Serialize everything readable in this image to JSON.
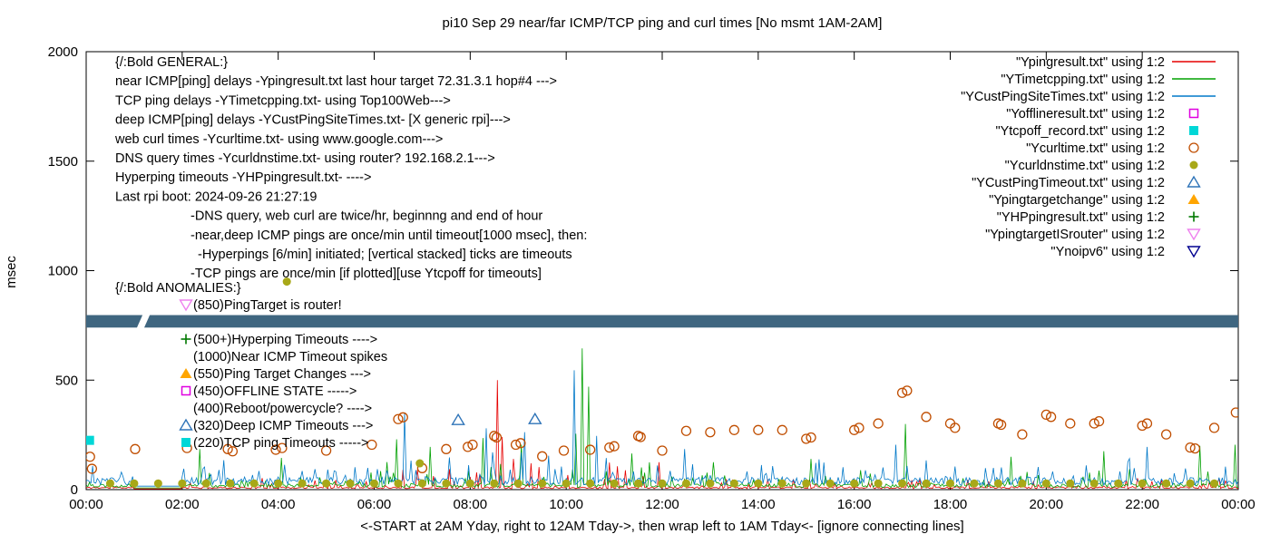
{
  "chart_data": {
    "type": "line+scatter",
    "title": "pi10 Sep 29  near/far ICMP/TCP ping and curl times [No msmt 1AM-2AM]",
    "ylabel": "msec",
    "xlabel": "<-START at 2AM Yday, right to 12AM Tday->, then wrap left to 1AM Tday<- [ignore connecting lines]",
    "ylim": [
      0,
      2000
    ],
    "y_ticks": [
      0,
      500,
      1000,
      1500,
      2000
    ],
    "x_ticks": [
      "00:00",
      "02:00",
      "04:00",
      "06:00",
      "08:00",
      "10:00",
      "12:00",
      "14:00",
      "16:00",
      "18:00",
      "20:00",
      "22:00",
      "00:00"
    ],
    "x_hours_range": [
      0,
      24
    ],
    "grid": false,
    "legend_position": "top-right-outside-plot",
    "legend": [
      {
        "label": "\"Ypingresult.txt\" using 1:2",
        "type": "line",
        "color": "#e60000"
      },
      {
        "label": "\"YTimetcpping.txt\" using 1:2",
        "type": "line",
        "color": "#00a000"
      },
      {
        "label": "\"YCustPingSiteTimes.txt\" using 1:2",
        "type": "line",
        "color": "#0078c8"
      },
      {
        "label": "\"Yofflineresult.txt\" using 1:2",
        "type": "square-open",
        "color": "#e000e0"
      },
      {
        "label": "\"Ytcpoff_record.txt\" using 1:2",
        "type": "square-filled",
        "color": "#00d7d7"
      },
      {
        "label": "\"Ycurltime.txt\" using 1:2",
        "type": "circle-open",
        "color": "#c04e01"
      },
      {
        "label": "\"Ycurldnstime.txt\" using 1:2",
        "type": "circle-filled",
        "color": "#a8a818"
      },
      {
        "label": "\"YCustPingTimeout.txt\" using 1:2",
        "type": "triangle-up-open",
        "color": "#2f74b8"
      },
      {
        "label": "\"Ypingtargetchange\" using 1:2",
        "type": "triangle-up-filled",
        "color": "#ffa500"
      },
      {
        "label": "\"YHPpingresult.txt\" using 1:2",
        "type": "plus",
        "color": "#007800"
      },
      {
        "label": "\"YpingtargetISrouter\" using 1:2",
        "type": "triangle-down-open",
        "color": "#ee82ee"
      },
      {
        "label": "\"Ynoipv6\" using 1:2",
        "type": "triangle-down-open",
        "color": "#000090"
      }
    ],
    "annotations": {
      "general": [
        {
          "indent": 0,
          "text": "{/:Bold GENERAL:}"
        },
        {
          "indent": 0,
          "text": "near ICMP[ping] delays -Ypingresult.txt last hour target 72.31.3.1 hop#4 --->"
        },
        {
          "indent": 0,
          "text": "TCP ping delays -YTimetcpping.txt- using Top100Web--->"
        },
        {
          "indent": 0,
          "text": "deep ICMP[ping] delays -YCustPingSiteTimes.txt- [X generic rpi]--->"
        },
        {
          "indent": 0,
          "text": "web curl times -Ycurltime.txt- using www.google.com--->"
        },
        {
          "indent": 0,
          "text": "DNS query times -Ycurldnstime.txt- using router? 192.168.2.1--->"
        },
        {
          "indent": 0,
          "text": "Hyperping timeouts -YHPpingresult.txt- ---->"
        },
        {
          "indent": 0,
          "text": "Last rpi boot: 2024-09-26 21:27:19"
        },
        {
          "indent": 1,
          "text": "-DNS query, web curl are twice/hr, beginnng and end of hour"
        },
        {
          "indent": 1,
          "text": "-near,deep ICMP pings are once/min until timeout[1000 msec], then:"
        },
        {
          "indent": 2,
          "text": "-Hyperpings [6/min] initiated; [vertical stacked] ticks are timeouts"
        },
        {
          "indent": 1,
          "text": "-TCP pings are once/min [if plotted][use Ytcpoff for timeouts]"
        }
      ],
      "anomalies_title": "{/:Bold ANOMALIES:}",
      "anomalies": [
        {
          "marker": "triangle-down-open",
          "color": "#ee82ee",
          "text": "(850)PingTarget is router!"
        },
        {
          "marker": "plus",
          "color": "#007800",
          "text": "(500+)Hyperping Timeouts ---->"
        },
        {
          "marker": "",
          "color": "",
          "text": "(1000)Near ICMP Timeout spikes"
        },
        {
          "marker": "triangle-up-filled",
          "color": "#ffa500",
          "text": "(550)Ping Target Changes --->"
        },
        {
          "marker": "square-open",
          "color": "#e000e0",
          "text": "(450)OFFLINE STATE ----->"
        },
        {
          "marker": "",
          "color": "",
          "text": "(400)Reboot/powercycle? ---->"
        },
        {
          "marker": "triangle-up-open",
          "color": "#2f74b8",
          "text": "(320)Deep ICMP Timeouts --->"
        },
        {
          "marker": "square-filled",
          "color": "#00d7d7",
          "text": "(220)TCP ping Timeouts ----->"
        }
      ]
    },
    "band": {
      "top_msec": 797,
      "bottom_msec": 740,
      "color": "#3f6680",
      "gap_hour": 1.22
    },
    "series": {
      "lines": [
        {
          "name": "Ypingresult.txt",
          "color": "#e60000",
          "seed": 11,
          "base": 10,
          "amp": 45,
          "segments": [
            {
              "from": 6,
              "to": 12,
              "amp": 120
            }
          ],
          "spikes": [
            [
              6.9,
              90
            ],
            [
              8.58,
              500
            ],
            [
              8.65,
              240
            ],
            [
              8.9,
              140
            ],
            [
              9.28,
              120
            ]
          ]
        },
        {
          "name": "YTimetcpping.txt",
          "color": "#00a000",
          "seed": 22,
          "base": 22,
          "amp": 70,
          "segments": [
            {
              "from": 6,
              "to": 12,
              "amp": 110
            }
          ],
          "spikes": [
            [
              2.35,
              185
            ],
            [
              4.05,
              145
            ],
            [
              6.45,
              230
            ],
            [
              7.15,
              195
            ],
            [
              8.25,
              235
            ],
            [
              9.05,
              205
            ],
            [
              10.2,
              255
            ],
            [
              10.33,
              645
            ],
            [
              10.47,
              470
            ],
            [
              11.35,
              165
            ],
            [
              13.05,
              125
            ],
            [
              15.1,
              140
            ],
            [
              17.08,
              300
            ],
            [
              19.25,
              150
            ],
            [
              21.2,
              175
            ],
            [
              23.2,
              200
            ],
            [
              23.92,
              205
            ]
          ]
        },
        {
          "name": "YCustPingSiteTimes.txt",
          "color": "#0078c8",
          "seed": 33,
          "base": 45,
          "amp": 90,
          "segments": [
            {
              "from": 6,
              "to": 12,
              "amp": 150
            }
          ],
          "spikes": [
            [
              6.62,
              350
            ],
            [
              8.32,
              280
            ],
            [
              9.12,
              262
            ],
            [
              10.15,
              545
            ],
            [
              10.62,
              245
            ],
            [
              12.45,
              185
            ],
            [
              16.85,
              205
            ],
            [
              22.1,
              195
            ]
          ]
        }
      ],
      "curl_circles": {
        "name": "Ycurltime.txt",
        "color": "#c04e01",
        "points": [
          [
            0.08,
            150
          ],
          [
            0.12,
            95
          ],
          [
            1.02,
            185
          ],
          [
            2.1,
            190
          ],
          [
            2.95,
            185
          ],
          [
            3.05,
            175
          ],
          [
            3.95,
            182
          ],
          [
            4.08,
            190
          ],
          [
            5.0,
            178
          ],
          [
            5.95,
            205
          ],
          [
            6.5,
            322
          ],
          [
            6.6,
            330
          ],
          [
            7.0,
            98
          ],
          [
            7.5,
            185
          ],
          [
            7.95,
            195
          ],
          [
            8.05,
            205
          ],
          [
            8.5,
            245
          ],
          [
            8.55,
            238
          ],
          [
            8.95,
            205
          ],
          [
            9.05,
            212
          ],
          [
            9.5,
            152
          ],
          [
            9.95,
            178
          ],
          [
            10.5,
            182
          ],
          [
            10.9,
            192
          ],
          [
            11.0,
            198
          ],
          [
            11.5,
            245
          ],
          [
            11.55,
            240
          ],
          [
            12.0,
            178
          ],
          [
            12.5,
            268
          ],
          [
            13.0,
            262
          ],
          [
            13.5,
            272
          ],
          [
            14.0,
            272
          ],
          [
            14.5,
            272
          ],
          [
            15.0,
            232
          ],
          [
            15.1,
            238
          ],
          [
            16.0,
            272
          ],
          [
            16.1,
            282
          ],
          [
            16.5,
            302
          ],
          [
            17.0,
            442
          ],
          [
            17.1,
            452
          ],
          [
            17.5,
            332
          ],
          [
            18.0,
            302
          ],
          [
            18.1,
            282
          ],
          [
            19.0,
            302
          ],
          [
            19.06,
            296
          ],
          [
            19.5,
            252
          ],
          [
            20.0,
            342
          ],
          [
            20.1,
            332
          ],
          [
            20.5,
            302
          ],
          [
            21.0,
            302
          ],
          [
            21.1,
            312
          ],
          [
            22.0,
            292
          ],
          [
            22.1,
            302
          ],
          [
            22.5,
            252
          ],
          [
            23.0,
            192
          ],
          [
            23.1,
            188
          ],
          [
            23.5,
            282
          ],
          [
            23.95,
            352
          ]
        ]
      },
      "dns_dots": {
        "name": "Ycurldnstime.txt",
        "color": "#a8a818",
        "baseline_msec": 28,
        "start_hour": 0.5,
        "end_hour": 23.5,
        "step_hours": 0.5,
        "outliers": [
          [
            4.18,
            950
          ],
          [
            6.95,
            120
          ]
        ]
      },
      "tcp_timeout_squares": {
        "name": "Ytcpoff_record.txt",
        "color": "#00d7d7",
        "points": [
          [
            0.07,
            225
          ]
        ]
      },
      "deep_timeout_triangles": {
        "name": "YCustPingTimeout.txt",
        "color": "#2f74b8",
        "points": [
          [
            7.75,
            318
          ],
          [
            9.35,
            322
          ]
        ]
      }
    }
  }
}
